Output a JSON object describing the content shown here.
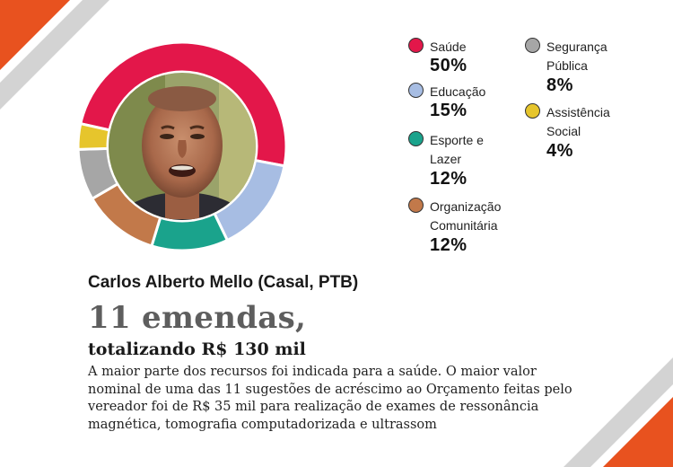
{
  "chart_data": {
    "type": "pie",
    "categories": [
      "Saúde",
      "Educação",
      "Esporte e Lazer",
      "Organização Comunitária",
      "Segurança Pública",
      "Assistência Social"
    ],
    "values": [
      50,
      15,
      12,
      12,
      8,
      4
    ],
    "value_labels": [
      "50%",
      "15%",
      "12%",
      "12%",
      "8%",
      "4%"
    ],
    "colors": [
      "#e3174a",
      "#a7bde3",
      "#1aa38c",
      "#c2794a",
      "#a6a6a6",
      "#e6c52c"
    ],
    "style": "donut"
  },
  "profile": {
    "name": "Carlos Alberto Mello (Casal, PTB)",
    "headline": "11 emendas,",
    "subhead": "totalizando R$ 130 mil",
    "description": "A maior parte dos recursos foi indicada para a saúde. O maior valor nominal de uma das 11 sugestões de acréscimo ao Orçamento feitas pelo vereador foi de R$ 35 mil para realização de exames de ressonância magnética, tomografia computadorizada e ultrassom"
  },
  "decor": {
    "accent_orange": "#e8521f",
    "stripe_gray": "#cfcfcf"
  }
}
